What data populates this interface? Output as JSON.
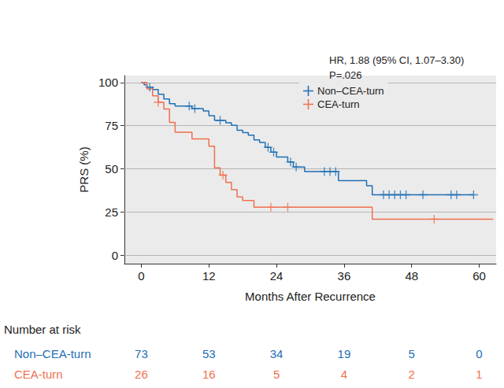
{
  "chart_data": {
    "type": "line",
    "line_style": "step",
    "x_label": "Months After Recurrence",
    "y_label": "PRS (%)",
    "annotations": [
      "HR, 1.88 (95% CI, 1.07–3.30)",
      "P=.026"
    ],
    "xlim": [
      -3,
      63
    ],
    "xticks": [
      0,
      12,
      24,
      36,
      48,
      60
    ],
    "ylim": [
      -5,
      104
    ],
    "yticks": [
      0,
      25,
      50,
      75,
      100
    ],
    "grid": true,
    "legend": "upper right",
    "series": [
      {
        "name": "Non–CEA-turn",
        "color": "#1f6fb5",
        "marker": "plus",
        "x": [
          0,
          0.5,
          1,
          2,
          3,
          4,
          5,
          6,
          9,
          11,
          12,
          13,
          15,
          16,
          17,
          18,
          19,
          20,
          21,
          22,
          23,
          24,
          26,
          27,
          29,
          35,
          40,
          41,
          59
        ],
        "values": [
          100,
          98.6,
          97.3,
          95.9,
          93.2,
          90.4,
          87.7,
          86.3,
          84.9,
          83.5,
          80.7,
          78.0,
          76.6,
          75.1,
          72.3,
          70.9,
          69.5,
          66.7,
          65.2,
          62.4,
          59.6,
          56.8,
          53.9,
          51.0,
          48.4,
          43.1,
          40.2,
          34.9,
          34.9
        ],
        "censored": {
          "x": [
            1.5,
            8.5,
            9.5,
            14,
            22.5,
            23.5,
            26.5,
            27.5,
            32.5,
            33.5,
            34.5,
            43,
            44,
            45,
            46,
            47,
            50,
            55,
            56,
            59
          ],
          "values": [
            97.3,
            86.3,
            84.9,
            78.0,
            62.4,
            59.6,
            53.9,
            51.0,
            48.4,
            48.4,
            48.4,
            34.9,
            34.9,
            34.9,
            34.9,
            34.9,
            34.9,
            34.9,
            34.9,
            34.9
          ]
        }
      },
      {
        "name": "CEA-turn",
        "color": "#f0704f",
        "marker": "plus",
        "x": [
          0,
          1,
          2,
          3,
          4,
          5,
          6,
          9,
          12,
          13,
          14,
          15,
          16,
          17,
          18,
          20,
          41,
          62.5
        ],
        "values": [
          100,
          96.2,
          92.3,
          88.5,
          84.6,
          76.9,
          71.2,
          67.3,
          63.1,
          50.5,
          46.3,
          42.1,
          37.9,
          33.7,
          31.6,
          27.7,
          20.8,
          20.8
        ],
        "censored": {
          "x": [
            3,
            14.5,
            23,
            26,
            52
          ],
          "values": [
            88.5,
            46.3,
            27.7,
            27.7,
            20.8
          ]
        }
      }
    ],
    "risk_table": {
      "title": "Number at risk",
      "times": [
        0,
        12,
        24,
        36,
        48,
        60
      ],
      "rows": [
        {
          "name": "Non–CEA-turn",
          "color": "#1f6fb5",
          "values": [
            73,
            53,
            34,
            19,
            5,
            0
          ]
        },
        {
          "name": "CEA-turn",
          "color": "#f0704f",
          "values": [
            26,
            16,
            5,
            4,
            2,
            1
          ]
        }
      ]
    }
  }
}
